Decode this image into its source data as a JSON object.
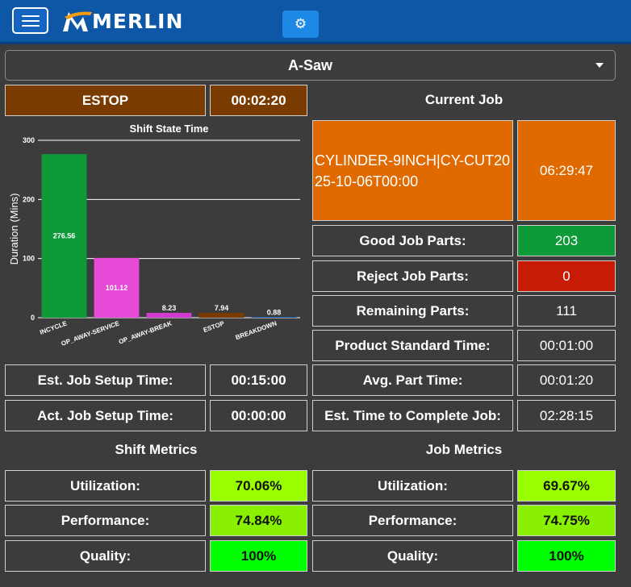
{
  "app": {
    "name": "MERLIN",
    "icons": {
      "menu": "hamburger-icon",
      "settings": "gear-icon",
      "dropdown": "caret-down-icon"
    }
  },
  "machine_select": {
    "value": "A-Saw"
  },
  "status": {
    "state": "ESTOP",
    "state_color": "#7a3b00",
    "timer": "00:02:20"
  },
  "current_job": {
    "heading": "Current Job",
    "name": "CYLINDER-9INCH|CY-CUT2025-10-06T00:00",
    "elapsed": "06:29:47",
    "rows": [
      {
        "label": "Good Job Parts:",
        "value": "203",
        "color": "#0f9a3a"
      },
      {
        "label": "Reject Job Parts:",
        "value": "0",
        "color": "#c81b06"
      },
      {
        "label": "Remaining Parts:",
        "value": "111"
      },
      {
        "label": "Product Standard Time:",
        "value": "00:01:00"
      },
      {
        "label": "Avg. Part Time:",
        "value": "00:01:20"
      },
      {
        "label": "Est. Time to Complete Job:",
        "value": "02:28:15"
      }
    ]
  },
  "setup": {
    "rows": [
      {
        "label": "Est. Job Setup Time:",
        "value": "00:15:00"
      },
      {
        "label": "Act. Job Setup Time:",
        "value": "00:00:00"
      }
    ]
  },
  "shift_metrics": {
    "heading": "Shift Metrics",
    "rows": [
      {
        "label": "Utilization:",
        "value": "70.06%",
        "color": "#99ff00"
      },
      {
        "label": "Performance:",
        "value": "74.84%",
        "color": "#88f000"
      },
      {
        "label": "Quality:",
        "value": "100%",
        "color": "#00ff00"
      }
    ]
  },
  "job_metrics": {
    "heading": "Job Metrics",
    "rows": [
      {
        "label": "Utilization:",
        "value": "69.67%",
        "color": "#99ff00"
      },
      {
        "label": "Performance:",
        "value": "74.75%",
        "color": "#88f000"
      },
      {
        "label": "Quality:",
        "value": "100%",
        "color": "#00ff00"
      }
    ]
  },
  "chart_data": {
    "type": "bar",
    "title": "Shift State Time",
    "ylabel": "Duration (Mins)",
    "xlabel": "",
    "ylim": [
      0,
      300
    ],
    "yticks": [
      0,
      100,
      200,
      300
    ],
    "grid": true,
    "categories": [
      "INCYCLE",
      "OP_AWAY-SERVICE",
      "OP_AWAY-BREAK",
      "ESTOP",
      "BREAKDOWN"
    ],
    "values": [
      276.56,
      101.12,
      8.23,
      7.94,
      0.88
    ],
    "value_labels": [
      "276.56",
      "101.12",
      "8.23",
      "7.94",
      "0.88"
    ],
    "colors": [
      "#0f9a3a",
      "#e64ad6",
      "#cf3ccf",
      "#7a3b00",
      "#0d57a6"
    ]
  }
}
